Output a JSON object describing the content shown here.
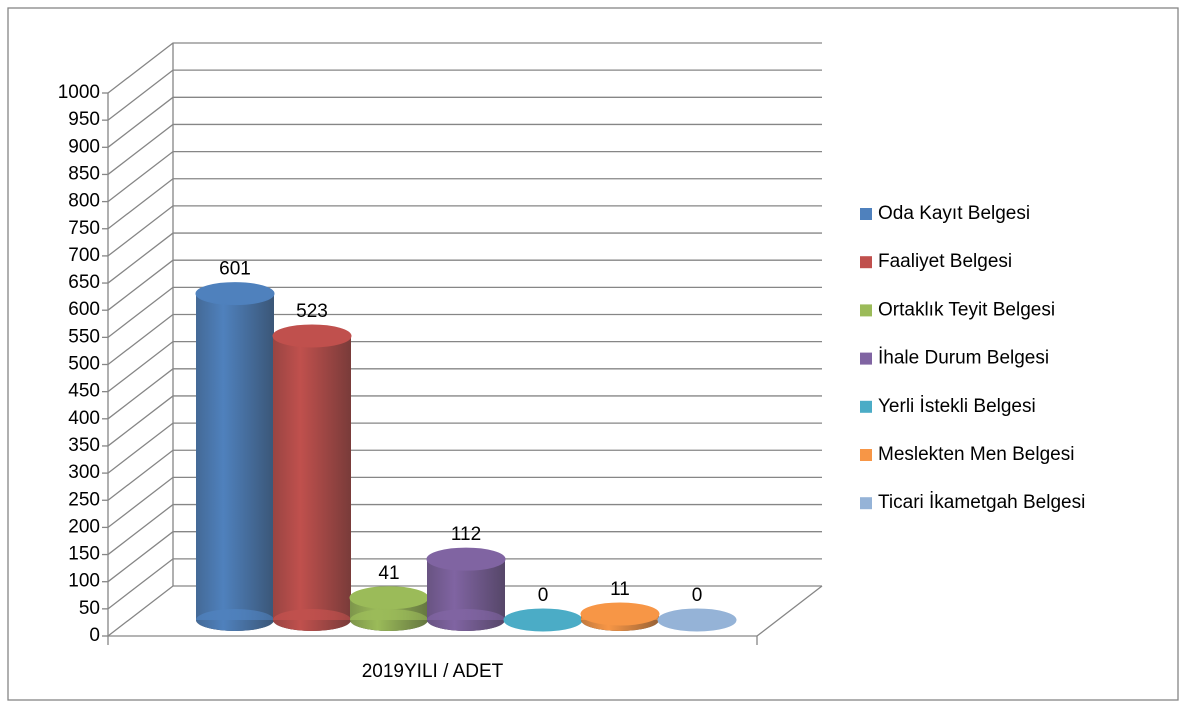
{
  "chart_data": {
    "type": "bar3d",
    "categories": [
      "2019YILI / ADET"
    ],
    "series": [
      {
        "name": "Oda Kayıt Belgesi",
        "color": "#4f81bd",
        "values": [
          601
        ]
      },
      {
        "name": "Faaliyet Belgesi",
        "color": "#c0504d",
        "values": [
          523
        ]
      },
      {
        "name": "Ortaklık Teyit Belgesi",
        "color": "#9bbb59",
        "values": [
          41
        ]
      },
      {
        "name": "İhale Durum Belgesi",
        "color": "#8064a2",
        "values": [
          112
        ]
      },
      {
        "name": "Yerli İstekli Belgesi",
        "color": "#4bacc6",
        "values": [
          0
        ]
      },
      {
        "name": "Meslekten Men Belgesi",
        "color": "#f79646",
        "values": [
          11
        ]
      },
      {
        "name": "Ticari İkametgah Belgesi",
        "color": "#95b3d7",
        "values": [
          0
        ]
      }
    ],
    "ylim": [
      0,
      1000
    ],
    "yticks": [
      0,
      50,
      100,
      150,
      200,
      250,
      300,
      350,
      400,
      450,
      500,
      550,
      600,
      650,
      700,
      750,
      800,
      850,
      900,
      950,
      1000
    ],
    "grid": true,
    "legend": "right"
  }
}
